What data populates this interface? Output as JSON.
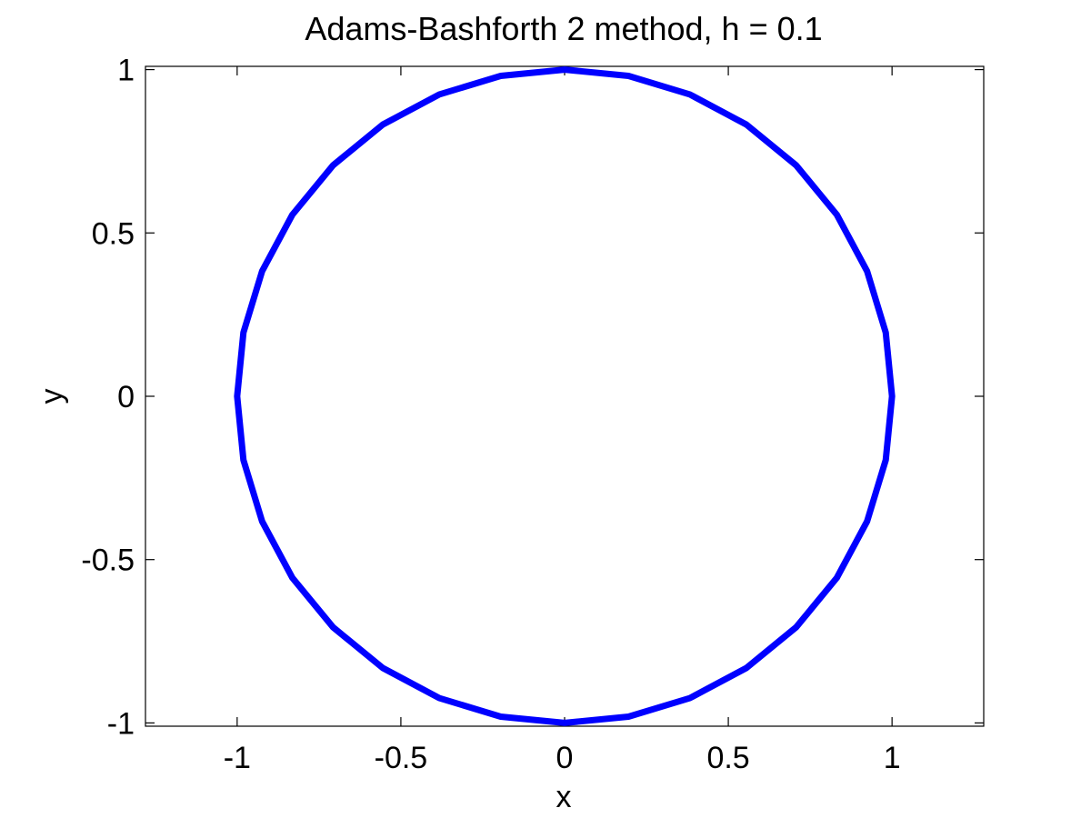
{
  "chart_data": {
    "type": "line",
    "title": "Adams-Bashforth 2 method, h = 0.1",
    "xlabel": "x",
    "ylabel": "y",
    "xlim": [
      -1.28,
      1.28
    ],
    "ylim": [
      -1.01,
      1.01
    ],
    "xticks": [
      -1,
      -0.5,
      0,
      0.5,
      1
    ],
    "xtick_labels": [
      "-1",
      "-0.5",
      "0",
      "0.5",
      "1"
    ],
    "yticks": [
      -1,
      -0.5,
      0,
      0.5,
      1
    ],
    "ytick_labels": [
      "-1",
      "-0.5",
      "0",
      "0.5",
      "1"
    ],
    "grid": false,
    "series": [
      {
        "color": "#0000ff",
        "x": [
          1.0,
          0.9808,
          0.9239,
          0.8315,
          0.7071,
          0.5556,
          0.3827,
          0.1951,
          0.0,
          -0.1951,
          -0.3827,
          -0.5556,
          -0.7071,
          -0.8315,
          -0.9239,
          -0.9808,
          -1.0,
          -0.9808,
          -0.9239,
          -0.8315,
          -0.7071,
          -0.5556,
          -0.3827,
          -0.1951,
          0.0,
          0.1951,
          0.3827,
          0.5556,
          0.7071,
          0.8315,
          0.9239,
          0.9808,
          1.0
        ],
        "y": [
          0.0,
          0.1951,
          0.3827,
          0.5556,
          0.7071,
          0.8315,
          0.9239,
          0.9808,
          1.0,
          0.9808,
          0.9239,
          0.8315,
          0.7071,
          0.5556,
          0.3827,
          0.1951,
          0.0,
          -0.1951,
          -0.3827,
          -0.5556,
          -0.7071,
          -0.8315,
          -0.9239,
          -0.9808,
          -1.0,
          -0.9808,
          -0.9239,
          -0.8315,
          -0.7071,
          -0.5556,
          -0.3827,
          -0.1951,
          0.0
        ]
      }
    ]
  }
}
